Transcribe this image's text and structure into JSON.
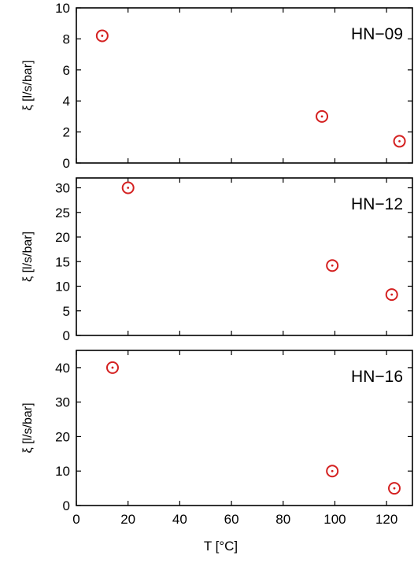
{
  "chart_data": [
    {
      "type": "scatter",
      "panel_label": "HN−09",
      "ylabel": "ξ [l/s/bar]",
      "xlim": [
        0,
        130
      ],
      "ylim": [
        0,
        10
      ],
      "yticks": [
        0,
        2,
        4,
        6,
        8,
        10
      ],
      "series": [
        {
          "color": "#d42020",
          "points": [
            {
              "x": 10,
              "y": 8.2
            },
            {
              "x": 95,
              "y": 3.0
            },
            {
              "x": 125,
              "y": 1.4
            }
          ]
        }
      ]
    },
    {
      "type": "scatter",
      "panel_label": "HN−12",
      "ylabel": "ξ [l/s/bar]",
      "xlim": [
        0,
        130
      ],
      "ylim": [
        0,
        32
      ],
      "yticks": [
        0,
        5,
        10,
        15,
        20,
        25,
        30
      ],
      "series": [
        {
          "color": "#d42020",
          "points": [
            {
              "x": 20,
              "y": 30.0
            },
            {
              "x": 99,
              "y": 14.2
            },
            {
              "x": 122,
              "y": 8.3
            }
          ]
        }
      ]
    },
    {
      "type": "scatter",
      "panel_label": "HN−16",
      "ylabel": "ξ [l/s/bar]",
      "xlabel": "T [°C]",
      "xlim": [
        0,
        130
      ],
      "ylim": [
        0,
        45
      ],
      "yticks": [
        0,
        10,
        20,
        30,
        40
      ],
      "xticks": [
        0,
        20,
        40,
        60,
        80,
        100,
        120
      ],
      "series": [
        {
          "color": "#d42020",
          "points": [
            {
              "x": 14,
              "y": 40.0
            },
            {
              "x": 99,
              "y": 10.0
            },
            {
              "x": 123,
              "y": 5.0
            }
          ]
        }
      ]
    }
  ]
}
